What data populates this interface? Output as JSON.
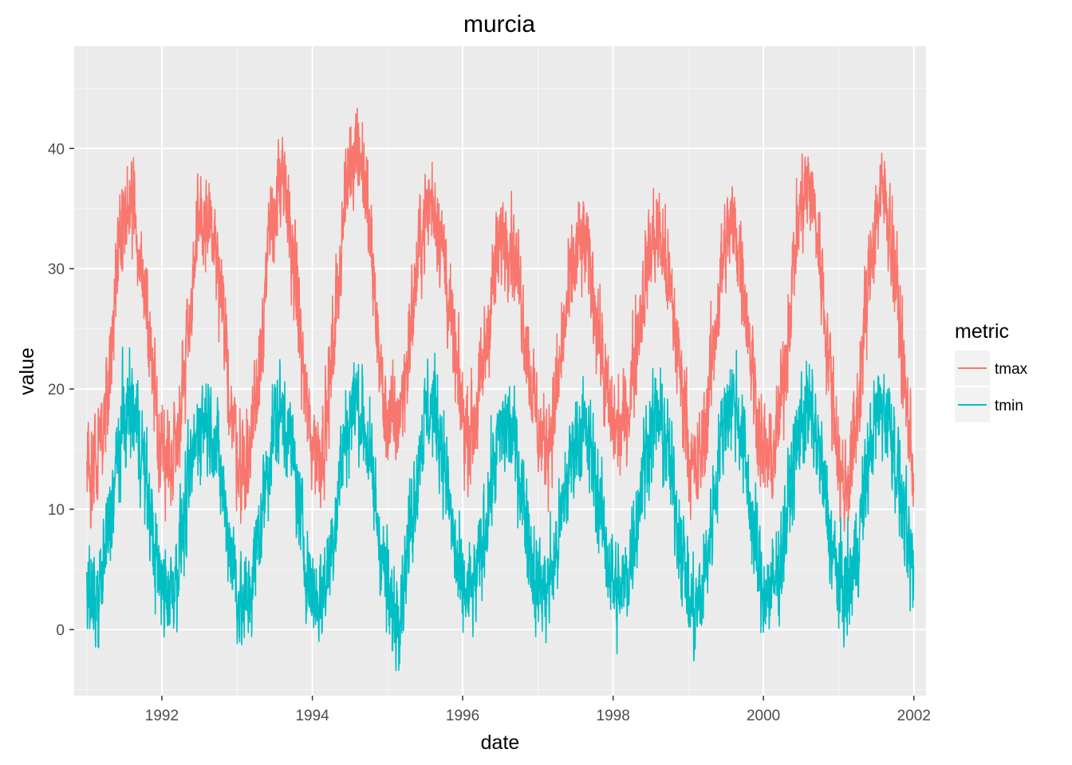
{
  "chart_data": {
    "type": "line",
    "title": "murcia",
    "xlabel": "date",
    "ylabel": "value",
    "x_range": [
      "1991-01-01",
      "2001-12-31"
    ],
    "xlim": [
      "1990-11-01",
      "2002-03-01"
    ],
    "ylim": [
      -5.5,
      48.5
    ],
    "x_ticks": [
      "1992",
      "1994",
      "1996",
      "1998",
      "2000",
      "2002"
    ],
    "y_ticks": [
      0,
      10,
      20,
      30,
      40
    ],
    "grid": true,
    "legend": {
      "title": "metric",
      "position": "right"
    },
    "series": [
      {
        "name": "tmax",
        "color": "#F8766D",
        "annual_min": [
          9.0,
          9.5,
          9.0,
          10.3,
          12.5,
          12.0,
          11.0,
          12.0,
          8.5,
          9.5,
          7.5
        ],
        "annual_peak": [
          40.5,
          39.7,
          42.1,
          45.9,
          41.1,
          38.6,
          37.5,
          38.2,
          38.9,
          42.2,
          41.4
        ]
      },
      {
        "name": "tmin",
        "color": "#00BFC4",
        "annual_min": [
          -2.5,
          -1.2,
          -2.6,
          -1.8,
          -3.0,
          -1.7,
          -1.1,
          -1.5,
          -3.1,
          -1.4,
          -1.3
        ],
        "annual_peak": [
          23.9,
          23.3,
          23.5,
          24.4,
          24.0,
          22.5,
          22.0,
          23.0,
          24.6,
          23.5,
          24.0
        ]
      }
    ]
  }
}
